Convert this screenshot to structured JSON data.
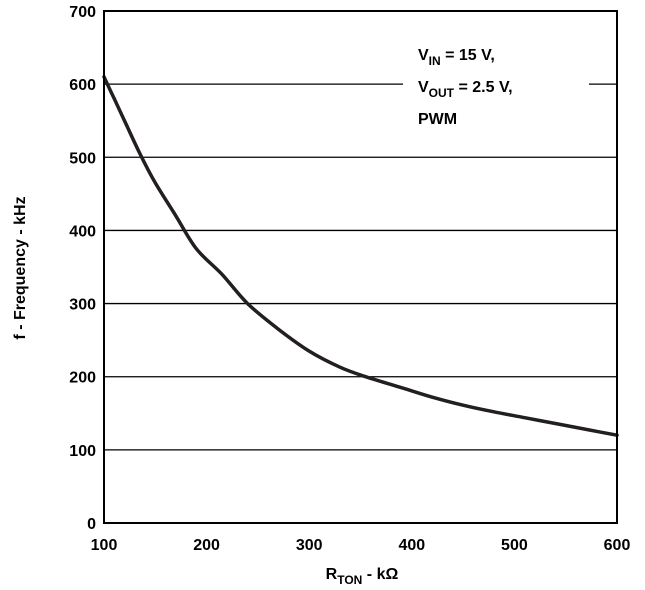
{
  "chart_data": {
    "type": "line",
    "xlabel": "R",
    "xlabel_sub": "TON",
    "xlabel_unit": " - kΩ",
    "ylabel": "f - Frequency - kHz",
    "xlim": [
      100,
      600
    ],
    "ylim": [
      0,
      700
    ],
    "xticks": [
      100,
      200,
      300,
      400,
      500,
      600
    ],
    "yticks": [
      0,
      100,
      200,
      300,
      400,
      500,
      600,
      700
    ],
    "grid": "horizontal",
    "annotation": {
      "line1_main": "V",
      "line1_sub": "IN",
      "line1_rest": " = 15 V,",
      "line2_main": "V",
      "line2_sub": "OUT",
      "line2_rest": " = 2.5 V,",
      "line3": "PWM"
    },
    "series": [
      {
        "color": "#231f20",
        "x": [
          100,
          110,
          120,
          135,
          150,
          170,
          190,
          215,
          240,
          270,
          300,
          330,
          355,
          390,
          420,
          450,
          480,
          510,
          540,
          570,
          600
        ],
        "y": [
          610,
          580,
          550,
          505,
          465,
          420,
          375,
          340,
          300,
          265,
          235,
          213,
          200,
          185,
          172,
          161,
          152,
          144,
          136,
          128,
          120
        ]
      }
    ]
  }
}
